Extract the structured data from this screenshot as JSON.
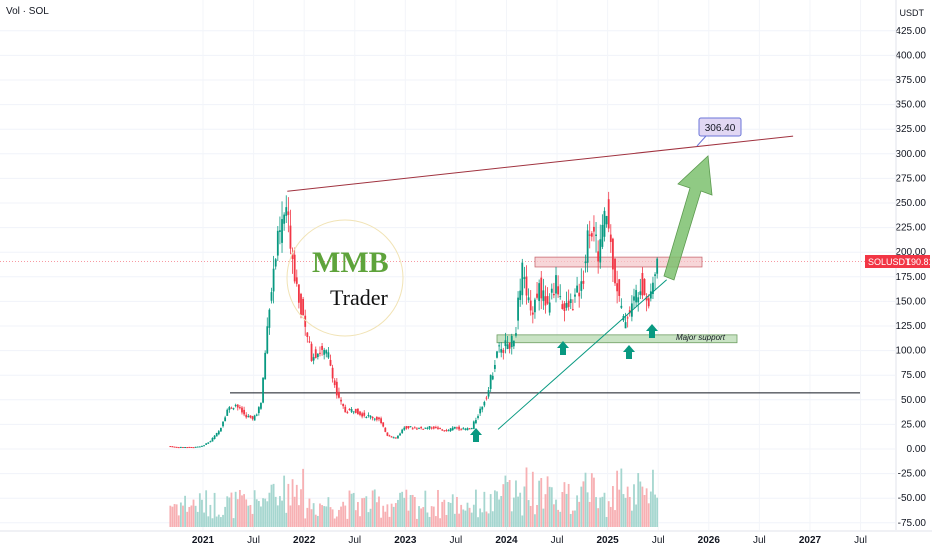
{
  "header": {
    "indicator_label": "Vol · SOL",
    "currency": "USDT"
  },
  "price_axis": {
    "ticks": [
      "425.00",
      "400.00",
      "375.00",
      "350.00",
      "325.00",
      "300.00",
      "275.00",
      "250.00",
      "225.00",
      "200.00",
      "175.00",
      "150.00",
      "125.00",
      "100.00",
      "75.00",
      "50.00",
      "25.00",
      "0.00",
      "-25.00",
      "-50.00",
      "-75.00"
    ]
  },
  "time_axis": {
    "ticks": [
      "2021",
      "Jul",
      "2022",
      "Jul",
      "2023",
      "Jul",
      "2024",
      "Jul",
      "2025",
      "Jul",
      "2026",
      "Jul",
      "2027",
      "Jul"
    ]
  },
  "price_badge": {
    "symbol": "SOLUSDT",
    "price": "190.81",
    "color": "#f23645"
  },
  "target_callout": {
    "text": "306.40"
  },
  "annotations": {
    "support_label": "Major support"
  },
  "logo": {
    "text": "MMB",
    "subtitle": "Trader"
  },
  "colors": {
    "up": "#089981",
    "down": "#f23645",
    "vol_up": "#a5d6cf",
    "vol_down": "#f7b0b3",
    "arrow": "#7cc16e",
    "support_zone": "#b7d9b0",
    "resistance_zone": "#f4c4c8"
  },
  "chart_data": {
    "type": "line",
    "title": "",
    "xlabel": "",
    "ylabel": "",
    "ylim": [
      -75,
      425
    ],
    "series": [
      {
        "x": [
          "2020-09",
          "2020-10",
          "2020-11",
          "2020-12",
          "2021-01",
          "2021-02",
          "2021-03",
          "2021-04",
          "2021-05",
          "2021-06",
          "2021-07",
          "2021-08",
          "2021-09",
          "2021-10",
          "2021-11",
          "2021-12",
          "2022-01",
          "2022-02",
          "2022-03",
          "2022-04",
          "2022-05",
          "2022-06",
          "2022-07",
          "2022-08",
          "2022-09",
          "2022-10",
          "2022-11",
          "2022-12",
          "2023-01",
          "2023-02",
          "2023-03",
          "2023-04",
          "2023-05",
          "2023-06",
          "2023-07",
          "2023-08",
          "2023-09",
          "2023-10",
          "2023-11",
          "2023-12",
          "2024-01",
          "2024-02",
          "2024-03",
          "2024-04",
          "2024-05",
          "2024-06",
          "2024-07",
          "2024-08",
          "2024-09",
          "2024-10",
          "2024-11",
          "2024-12",
          "2025-01",
          "2025-02",
          "2025-03",
          "2025-04",
          "2025-05",
          "2025-06",
          "2025-07"
        ],
        "values": [
          3,
          2,
          2,
          2,
          3,
          8,
          18,
          40,
          45,
          35,
          30,
          45,
          150,
          210,
          245,
          180,
          130,
          95,
          100,
          95,
          55,
          38,
          40,
          35,
          33,
          30,
          14,
          11,
          22,
          22,
          21,
          22,
          21,
          18,
          22,
          20,
          21,
          40,
          60,
          100,
          105,
          110,
          180,
          140,
          165,
          145,
          170,
          140,
          150,
          165,
          230,
          200,
          240,
          175,
          130,
          145,
          170,
          150,
          190.81
        ]
      }
    ],
    "horizontal_levels": [
      {
        "value": 57,
        "label": ""
      },
      {
        "value": 190.81,
        "label": "SOLUSDT"
      }
    ],
    "zones": [
      {
        "name": "Major support",
        "from": 108,
        "to": 116
      },
      {
        "name": "",
        "from": 185,
        "to": 195
      }
    ],
    "trendlines": [
      {
        "from": [
          "2021-11",
          262
        ],
        "to": [
          "2026-11",
          318
        ]
      },
      {
        "from": [
          "2023-12",
          20
        ],
        "to": [
          "2025-08",
          172
        ]
      }
    ],
    "target": 306.4
  }
}
